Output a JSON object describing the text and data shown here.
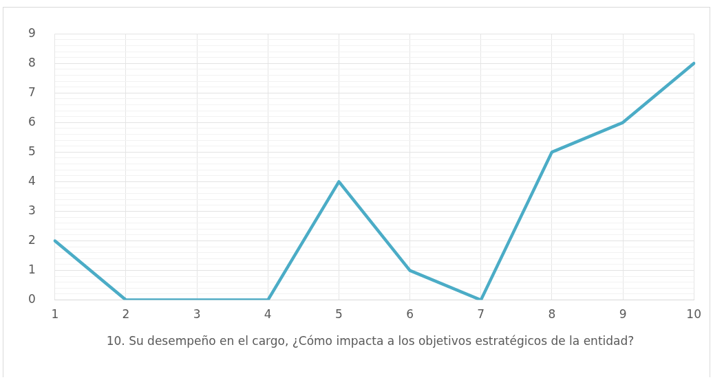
{
  "chart_data": {
    "type": "line",
    "xlabel": "10. Su desempeño en el cargo, ¿Cómo impacta a los objetivos estratégicos de la entidad?",
    "categories": [
      "1",
      "2",
      "3",
      "4",
      "5",
      "6",
      "7",
      "8",
      "9",
      "10"
    ],
    "series": [
      {
        "color": "#4bacc6",
        "values": [
          2,
          0,
          0,
          0,
          4,
          1,
          0,
          5,
          6,
          8
        ]
      }
    ],
    "ylim": [
      0,
      9
    ],
    "yticks": [
      0,
      {
        "value": 0.2,
        "label": null
      },
      {
        "value": 0.4,
        "label": null
      },
      {
        "value": 0.6,
        "label": null
      },
      {
        "value": 0.8,
        "label": null
      },
      1,
      {
        "value": 1.2,
        "label": null
      },
      {
        "value": 1.4,
        "label": null
      },
      {
        "value": 1.6,
        "label": null
      },
      {
        "value": 1.8,
        "label": null
      },
      2,
      {
        "value": 2.2,
        "label": null
      },
      {
        "value": 2.4,
        "label": null
      },
      {
        "value": 2.6,
        "label": null
      },
      {
        "value": 2.8,
        "label": null
      },
      3,
      {
        "value": 3.2,
        "label": null
      },
      {
        "value": 3.4,
        "label": null
      },
      {
        "value": 3.6,
        "label": null
      },
      {
        "value": 3.8,
        "label": null
      },
      4,
      {
        "value": 4.2,
        "label": null
      },
      {
        "value": 4.4,
        "label": null
      },
      {
        "value": 4.6,
        "label": null
      },
      {
        "value": 4.8,
        "label": null
      },
      5,
      {
        "value": 5.2,
        "label": null
      },
      {
        "value": 5.4,
        "label": null
      },
      {
        "value": 5.6,
        "label": null
      },
      {
        "value": 5.8,
        "label": null
      },
      6,
      {
        "value": 6.2,
        "label": null
      },
      {
        "value": 6.4,
        "label": null
      },
      {
        "value": 6.6,
        "label": null
      },
      {
        "value": 6.8,
        "label": null
      },
      7,
      {
        "value": 7.2,
        "label": null
      },
      {
        "value": 7.4,
        "label": null
      },
      {
        "value": 7.6,
        "label": null
      },
      {
        "value": 7.8,
        "label": null
      },
      8,
      {
        "value": 8.2,
        "label": null
      },
      {
        "value": 8.4,
        "label": null
      },
      {
        "value": 8.6,
        "label": null
      },
      {
        "value": 8.8,
        "label": null
      },
      9
    ],
    "grid": true,
    "legend": false,
    "marker": "none",
    "line_style": "solid"
  }
}
